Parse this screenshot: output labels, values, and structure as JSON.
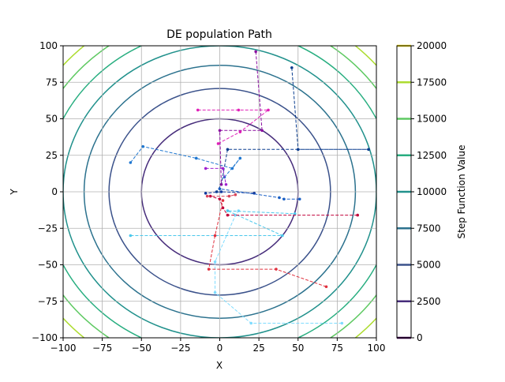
{
  "chart_data": {
    "type": "line",
    "title": "DE population Path",
    "xlabel": "X",
    "ylabel": "Y",
    "xlim": [
      -100,
      100
    ],
    "ylim": [
      -100,
      100
    ],
    "x_ticks": [
      -100,
      -75,
      -50,
      -25,
      0,
      25,
      50,
      75,
      100
    ],
    "y_ticks": [
      -100,
      -75,
      -50,
      -25,
      0,
      25,
      50,
      75,
      100
    ],
    "x_tick_labels": [
      "−100",
      "−75",
      "−50",
      "−25",
      "0",
      "25",
      "50",
      "75",
      "100"
    ],
    "y_tick_labels": [
      "−100",
      "−75",
      "−50",
      "−25",
      "0",
      "25",
      "50",
      "75",
      "100"
    ],
    "grid": true,
    "contours": {
      "levels": [
        2500,
        5000,
        7500,
        10000,
        12500,
        15000,
        17500
      ],
      "colors": [
        "#472d7b",
        "#3b528b",
        "#2c728e",
        "#21918c",
        "#28ae80",
        "#5ec962",
        "#addc30"
      ]
    },
    "colorbar": {
      "label": "Step Function Value",
      "ticks": [
        0,
        2500,
        5000,
        7500,
        10000,
        12500,
        15000,
        17500,
        20000
      ],
      "tick_labels": [
        "0",
        "2500",
        "5000",
        "7500",
        "10000",
        "12500",
        "15000",
        "17500",
        "20000"
      ],
      "colors": [
        "#440154",
        "#472d7b",
        "#3b528b",
        "#2c728e",
        "#21918c",
        "#28ae80",
        "#5ec962",
        "#addc30",
        "#fde725"
      ]
    },
    "series": [
      {
        "color": "#1f77d0",
        "points": [
          [
            -57,
            20
          ],
          [
            -49,
            31
          ],
          [
            -15,
            23
          ],
          [
            8,
            16
          ],
          [
            13,
            23
          ],
          [
            3,
            10
          ]
        ]
      },
      {
        "color": "#7fdcff",
        "points": [
          [
            78,
            -90
          ],
          [
            20,
            -90
          ],
          [
            -3,
            -69
          ],
          [
            -3,
            -48
          ],
          [
            10,
            -16
          ],
          [
            12,
            -13
          ]
        ]
      },
      {
        "color": "#4bc8ec",
        "points": [
          [
            -57,
            -30
          ],
          [
            40,
            -30
          ],
          [
            5,
            -13
          ],
          [
            48,
            -15
          ]
        ]
      },
      {
        "color": "#0a3d8f",
        "points": [
          [
            46,
            85
          ],
          [
            50,
            29
          ],
          [
            95,
            29
          ],
          [
            5,
            29
          ],
          [
            1,
            5
          ],
          [
            -2,
            0
          ]
        ]
      },
      {
        "color": "#12399d",
        "points": [
          [
            22,
            -1
          ],
          [
            1,
            0
          ],
          [
            -9,
            -1
          ]
        ]
      },
      {
        "color": "#1a5fc4",
        "points": [
          [
            51,
            -5
          ],
          [
            41,
            -5
          ],
          [
            38,
            -4
          ],
          [
            0,
            2
          ]
        ]
      },
      {
        "color": "#c1003a",
        "points": [
          [
            88,
            -16
          ],
          [
            5,
            -16
          ],
          [
            2,
            -11
          ],
          [
            0,
            -5
          ],
          [
            -6,
            -3
          ]
        ]
      },
      {
        "color": "#e0303e",
        "points": [
          [
            68,
            -65
          ],
          [
            36,
            -53
          ],
          [
            -7,
            -53
          ],
          [
            -3,
            -30
          ],
          [
            2,
            -6
          ]
        ]
      },
      {
        "color": "#d8455a",
        "points": [
          [
            -8,
            -3
          ],
          [
            6,
            -3
          ],
          [
            10,
            -2
          ]
        ]
      },
      {
        "color": "#8b0fa0",
        "points": [
          [
            23,
            96
          ],
          [
            27,
            42
          ],
          [
            0,
            42
          ],
          [
            1,
            5
          ]
        ]
      },
      {
        "color": "#e020b8",
        "points": [
          [
            -14,
            56
          ],
          [
            12,
            56
          ],
          [
            31,
            56
          ],
          [
            13,
            41
          ],
          [
            -1,
            33
          ]
        ]
      },
      {
        "color": "#a020d0",
        "points": [
          [
            -9,
            16
          ],
          [
            2,
            16
          ],
          [
            4,
            5
          ]
        ]
      }
    ]
  }
}
